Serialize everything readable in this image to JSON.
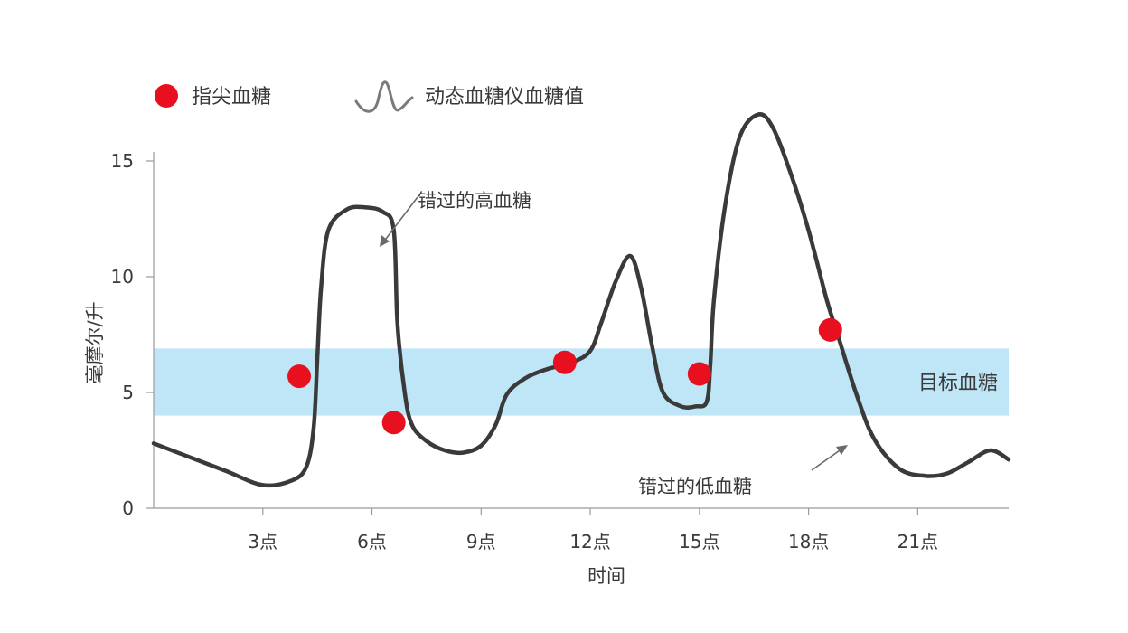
{
  "chart_data": {
    "type": "line",
    "xlabel": "时间",
    "ylabel": "毫摩尔/升",
    "xlim": [
      0,
      23.5
    ],
    "ylim": [
      0,
      15
    ],
    "x_ticks": [
      3,
      6,
      9,
      12,
      15,
      18,
      21
    ],
    "x_tick_labels": [
      "3点",
      "6点",
      "9点",
      "12点",
      "15点",
      "18点",
      "21点"
    ],
    "y_ticks": [
      0,
      5,
      10,
      15
    ],
    "y_tick_labels": [
      "0",
      "5",
      "10",
      "15"
    ],
    "target_band": {
      "label": "目标血糖",
      "range": [
        4.0,
        6.9
      ],
      "color": "#bfe6f6"
    },
    "series": [
      {
        "name": "动态血糖仪血糖值",
        "kind": "line",
        "color": "#3a3a3a",
        "points": [
          [
            0.0,
            2.8
          ],
          [
            1.0,
            2.2
          ],
          [
            2.0,
            1.6
          ],
          [
            3.0,
            1.0
          ],
          [
            3.8,
            1.2
          ],
          [
            4.2,
            1.8
          ],
          [
            4.4,
            3.5
          ],
          [
            4.5,
            6.5
          ],
          [
            4.6,
            9.5
          ],
          [
            4.8,
            12.0
          ],
          [
            5.3,
            12.9
          ],
          [
            5.8,
            13.0
          ],
          [
            6.3,
            12.8
          ],
          [
            6.6,
            12.0
          ],
          [
            6.7,
            8.0
          ],
          [
            6.9,
            5.0
          ],
          [
            7.1,
            3.6
          ],
          [
            7.5,
            2.9
          ],
          [
            8.0,
            2.5
          ],
          [
            8.5,
            2.4
          ],
          [
            9.0,
            2.7
          ],
          [
            9.4,
            3.6
          ],
          [
            9.7,
            4.9
          ],
          [
            10.2,
            5.6
          ],
          [
            10.8,
            6.0
          ],
          [
            11.5,
            6.3
          ],
          [
            12.0,
            6.8
          ],
          [
            12.3,
            8.0
          ],
          [
            12.7,
            9.8
          ],
          [
            13.1,
            10.9
          ],
          [
            13.4,
            9.5
          ],
          [
            13.7,
            7.0
          ],
          [
            14.0,
            5.0
          ],
          [
            14.5,
            4.4
          ],
          [
            14.9,
            4.4
          ],
          [
            15.2,
            4.6
          ],
          [
            15.3,
            6.2
          ],
          [
            15.4,
            9.0
          ],
          [
            15.7,
            13.0
          ],
          [
            16.1,
            16.0
          ],
          [
            16.6,
            17.0
          ],
          [
            17.0,
            16.5
          ],
          [
            17.5,
            14.5
          ],
          [
            18.0,
            12.0
          ],
          [
            18.5,
            9.0
          ],
          [
            18.8,
            7.5
          ],
          [
            19.3,
            5.0
          ],
          [
            19.8,
            3.0
          ],
          [
            20.5,
            1.7
          ],
          [
            21.2,
            1.4
          ],
          [
            21.8,
            1.5
          ],
          [
            22.4,
            2.0
          ],
          [
            23.0,
            2.5
          ],
          [
            23.5,
            2.1
          ]
        ]
      },
      {
        "name": "指尖血糖",
        "kind": "scatter",
        "color": "#e8101e",
        "points": [
          [
            4.0,
            5.7
          ],
          [
            6.6,
            3.7
          ],
          [
            11.3,
            6.3
          ],
          [
            15.0,
            5.8
          ],
          [
            18.6,
            7.7
          ]
        ]
      }
    ],
    "legend": {
      "position": "top-left",
      "entries": [
        {
          "label": "指尖血糖",
          "marker": "red-dot"
        },
        {
          "label": "动态血糖仪血糖值",
          "marker": "wave-line"
        }
      ]
    },
    "annotations": [
      {
        "text": "错过的高血糖",
        "points_to": [
          6.6,
          11.2
        ]
      },
      {
        "text": "错过的低血糖",
        "points_to": [
          19.3,
          2.8
        ]
      }
    ],
    "grid": false
  }
}
